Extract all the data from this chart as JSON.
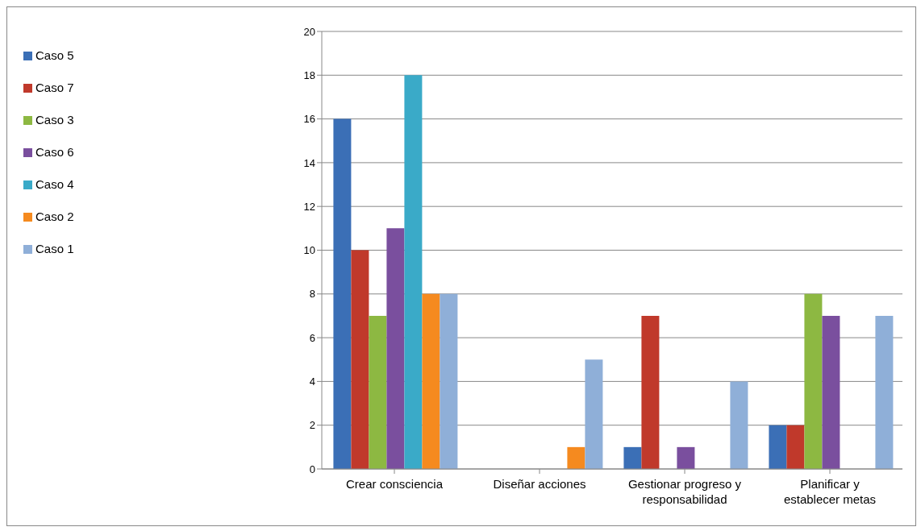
{
  "chart_data": {
    "type": "bar",
    "categories": [
      "Crear consciencia",
      "Diseñar acciones",
      "Gestionar progreso y responsabilidad",
      "Planificar y establecer metas"
    ],
    "series": [
      {
        "name": "Caso 5",
        "color": "#3b6fb6",
        "values": [
          16,
          0,
          1,
          2
        ]
      },
      {
        "name": "Caso 7",
        "color": "#c0392b",
        "values": [
          10,
          0,
          7,
          2
        ]
      },
      {
        "name": "Caso 3",
        "color": "#8db842",
        "values": [
          7,
          0,
          0,
          8
        ]
      },
      {
        "name": "Caso 6",
        "color": "#7a4f9e",
        "values": [
          11,
          0,
          1,
          7
        ]
      },
      {
        "name": "Caso 4",
        "color": "#3aaac8",
        "values": [
          18,
          0,
          0,
          0
        ]
      },
      {
        "name": "Caso 2",
        "color": "#f58a1f",
        "values": [
          8,
          1,
          0,
          0
        ]
      },
      {
        "name": "Caso 1",
        "color": "#8fafd8",
        "values": [
          8,
          5,
          4,
          7
        ]
      }
    ],
    "ylim": [
      0,
      20
    ],
    "yticks": [
      0,
      2,
      4,
      6,
      8,
      10,
      12,
      14,
      16,
      18,
      20
    ],
    "grid": "y",
    "legend": "left"
  }
}
